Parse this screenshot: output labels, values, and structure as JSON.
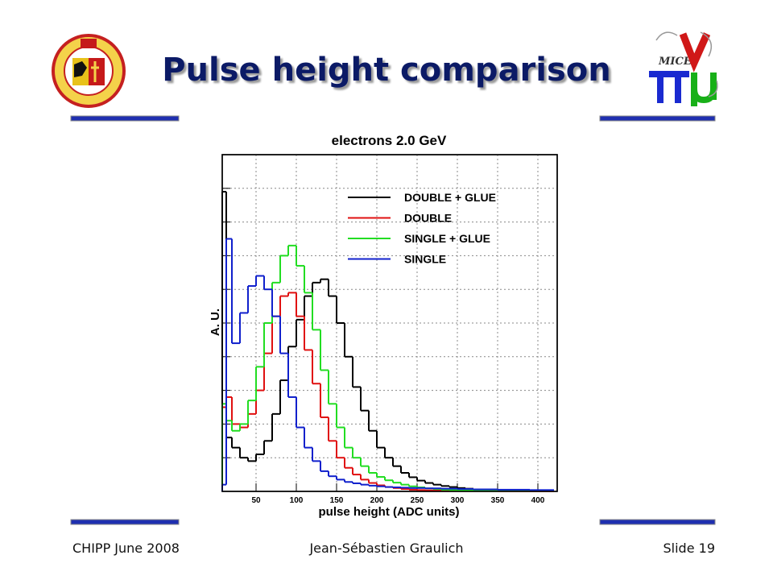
{
  "slide": {
    "title": "Pulse height comparison",
    "logo_right": "MICE",
    "footer_left": "CHIPP June 2008",
    "footer_center": "Jean-Sébastien Graulich",
    "footer_right": "Slide 19"
  },
  "chart_data": {
    "type": "histogram",
    "title": "electrons  2.0 GeV",
    "x_label": "pulse height (ADC units)",
    "y_label": "A. U.",
    "bins": [
      8,
      13,
      20,
      30,
      40,
      50,
      60,
      70,
      80,
      90,
      100,
      110,
      120,
      130,
      140,
      150,
      160,
      170,
      180,
      190,
      200,
      210,
      220,
      230,
      240,
      250,
      260,
      270,
      280,
      290,
      300,
      310,
      320,
      330,
      340,
      350,
      360,
      370,
      380,
      390,
      400,
      410,
      420
    ],
    "series": [
      {
        "name": "DOUBLE + GLUE",
        "color": "#000000",
        "values": [
          8.9,
          1.6,
          1.3,
          1.0,
          0.9,
          1.1,
          1.5,
          2.3,
          3.3,
          4.3,
          5.1,
          5.8,
          6.2,
          6.3,
          5.8,
          5.0,
          4.0,
          3.1,
          2.4,
          1.8,
          1.3,
          1.0,
          0.75,
          0.55,
          0.42,
          0.32,
          0.25,
          0.2,
          0.16,
          0.13,
          0.1,
          0.08,
          0.06,
          0.05,
          0.04,
          0.03,
          0.03,
          0.02,
          0.02,
          0.01,
          0.01,
          0.01
        ]
      },
      {
        "name": "DOUBLE",
        "color": "#e01010",
        "values": [
          2.5,
          2.8,
          2.0,
          1.9,
          2.3,
          3.0,
          4.1,
          5.2,
          5.8,
          5.9,
          5.2,
          4.2,
          3.2,
          2.2,
          1.5,
          1.0,
          0.7,
          0.5,
          0.35,
          0.25,
          0.18,
          0.13,
          0.1,
          0.07,
          0.05,
          0.04,
          0.03,
          0.03,
          0.02,
          0.02,
          0.01,
          0.01,
          0.01,
          0.01,
          0.01,
          0,
          0,
          0,
          0,
          0,
          0,
          0
        ]
      },
      {
        "name": "SINGLE + GLUE",
        "color": "#22dd22",
        "values": [
          2.6,
          2.1,
          1.8,
          2.0,
          2.7,
          3.7,
          5.0,
          6.2,
          7.0,
          7.3,
          6.7,
          5.9,
          4.8,
          3.6,
          2.6,
          1.9,
          1.3,
          1.0,
          0.75,
          0.55,
          0.43,
          0.33,
          0.26,
          0.2,
          0.15,
          0.12,
          0.09,
          0.07,
          0.05,
          0.04,
          0.03,
          0.03,
          0.02,
          0.02,
          0.01,
          0.01,
          0.01,
          0.01,
          0.01,
          0.01,
          0.01,
          0.01
        ]
      },
      {
        "name": "SINGLE",
        "color": "#1020cc",
        "values": [
          0.2,
          7.5,
          4.4,
          5.3,
          6.1,
          6.4,
          6.0,
          5.2,
          4.1,
          2.8,
          1.9,
          1.3,
          0.9,
          0.6,
          0.45,
          0.35,
          0.28,
          0.24,
          0.2,
          0.17,
          0.15,
          0.13,
          0.12,
          0.11,
          0.1,
          0.1,
          0.09,
          0.09,
          0.08,
          0.08,
          0.07,
          0.07,
          0.06,
          0.06,
          0.06,
          0.05,
          0.05,
          0.05,
          0.05,
          0.04,
          0.04,
          0.04
        ]
      }
    ],
    "xlim": [
      8,
      424
    ],
    "xticks": [
      50,
      100,
      150,
      200,
      250,
      300,
      350,
      400
    ],
    "ylim": [
      0,
      10
    ],
    "ygrid": [
      1,
      2,
      3,
      4,
      5,
      6,
      7,
      8,
      9
    ],
    "grid": true
  }
}
